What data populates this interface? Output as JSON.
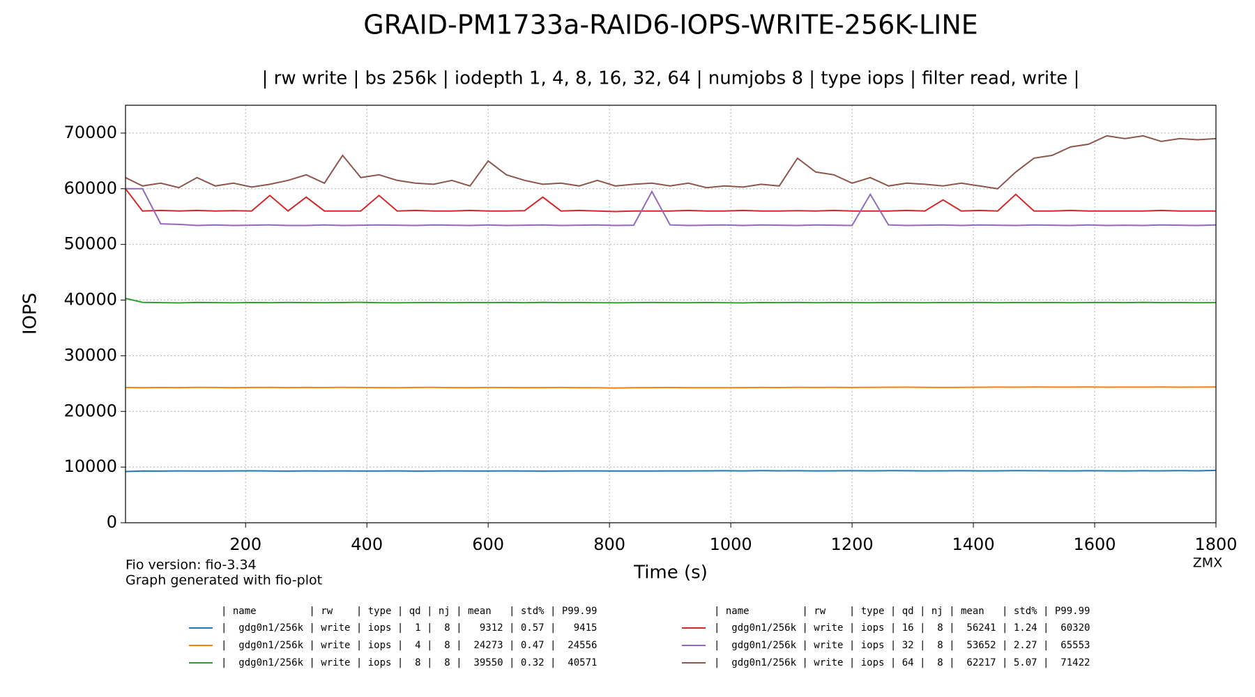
{
  "chart_data": {
    "type": "line",
    "title": "GRAID-PM1733a-RAID6-IOPS-WRITE-256K-LINE",
    "subtitle": "| rw write | bs 256k | iodepth 1, 4, 8, 16, 32, 64 | numjobs 8 | type iops | filter read, write |",
    "x_label": "Time (s)",
    "y_label": "IOPS",
    "footer_lines": [
      "Fio version: fio-3.34",
      "Graph generated with fio-plot"
    ],
    "footer_right": "ZMX",
    "legend_header": "| name         | rw    | type | qd | nj | mean   | std% | P99.99",
    "grid": true,
    "xlim": [
      2,
      1800
    ],
    "xticks": [
      200,
      400,
      600,
      800,
      1000,
      1200,
      1400,
      1600,
      1800
    ],
    "ylim": [
      0,
      75000
    ],
    "yticks": [
      0,
      10000,
      20000,
      30000,
      40000,
      50000,
      60000,
      70000
    ],
    "x": [
      2,
      30,
      60,
      90,
      120,
      150,
      180,
      210,
      240,
      270,
      300,
      330,
      360,
      390,
      420,
      450,
      480,
      510,
      540,
      570,
      600,
      630,
      660,
      690,
      720,
      750,
      780,
      810,
      840,
      870,
      900,
      930,
      960,
      990,
      1020,
      1050,
      1080,
      1110,
      1140,
      1170,
      1200,
      1230,
      1260,
      1290,
      1320,
      1350,
      1380,
      1410,
      1440,
      1470,
      1500,
      1530,
      1560,
      1590,
      1620,
      1650,
      1680,
      1710,
      1740,
      1770,
      1800
    ],
    "series": [
      {
        "name": "|  gdg0n1/256k | write | iops |  1 |  8 |   9312 | 0.57 |   9415",
        "color": "#1f77b4",
        "values": [
          9200,
          9300,
          9280,
          9320,
          9300,
          9290,
          9310,
          9330,
          9300,
          9280,
          9310,
          9300,
          9320,
          9290,
          9300,
          9310,
          9280,
          9300,
          9320,
          9300,
          9290,
          9310,
          9300,
          9280,
          9300,
          9320,
          9310,
          9300,
          9290,
          9300,
          9310,
          9320,
          9330,
          9340,
          9320,
          9350,
          9330,
          9340,
          9320,
          9330,
          9340,
          9330,
          9350,
          9340,
          9320,
          9330,
          9340,
          9320,
          9330,
          9350,
          9340,
          9330,
          9320,
          9340,
          9330,
          9320,
          9340,
          9330,
          9350,
          9330,
          9400
        ]
      },
      {
        "name": "|  gdg0n1/256k | write | iops |  4 |  8 |  24273 | 0.47 |  24556",
        "color": "#ff7f0e",
        "values": [
          24300,
          24250,
          24300,
          24280,
          24320,
          24300,
          24260,
          24300,
          24310,
          24280,
          24300,
          24290,
          24320,
          24300,
          24280,
          24260,
          24300,
          24310,
          24280,
          24250,
          24300,
          24290,
          24260,
          24280,
          24300,
          24270,
          24250,
          24200,
          24260,
          24280,
          24300,
          24250,
          24270,
          24260,
          24280,
          24300,
          24290,
          24310,
          24300,
          24330,
          24300,
          24320,
          24340,
          24350,
          24330,
          24300,
          24320,
          24340,
          24360,
          24350,
          24380,
          24370,
          24360,
          24380,
          24350,
          24370,
          24360,
          24380,
          24350,
          24370,
          24380
        ]
      },
      {
        "name": "|  gdg0n1/256k | write | iops |  8 |  8 |  39550 | 0.32 |  40571",
        "color": "#2ca02c",
        "values": [
          40300,
          39600,
          39550,
          39500,
          39580,
          39550,
          39520,
          39560,
          39540,
          39580,
          39550,
          39530,
          39560,
          39600,
          39540,
          39520,
          39550,
          39570,
          39540,
          39560,
          39550,
          39580,
          39530,
          39600,
          39550,
          39560,
          39540,
          39520,
          39550,
          39580,
          39550,
          39530,
          39560,
          39540,
          39500,
          39560,
          39550,
          39580,
          39540,
          39560,
          39550,
          39530,
          39570,
          39550,
          39540,
          39560,
          39550,
          39580,
          39540,
          39560,
          39550,
          39570,
          39540,
          39560,
          39580,
          39550,
          39600,
          39550,
          39560,
          39540,
          39550
        ]
      },
      {
        "name": "|  gdg0n1/256k | write | iops | 16 |  8 |  56241 | 1.24 |  60320",
        "color": "#d62728",
        "values": [
          60000,
          56000,
          56100,
          56000,
          56100,
          56000,
          56050,
          56000,
          58800,
          56000,
          58500,
          56000,
          56000,
          56000,
          58800,
          56000,
          56100,
          56000,
          56000,
          56100,
          56000,
          56000,
          56050,
          58500,
          56000,
          56100,
          56000,
          55900,
          56000,
          56000,
          56000,
          56100,
          56000,
          56000,
          56100,
          56000,
          56000,
          56050,
          56000,
          56100,
          56000,
          56000,
          56000,
          56100,
          56000,
          58000,
          56000,
          56100,
          56000,
          59000,
          56000,
          56000,
          56100,
          56000,
          56000,
          56000,
          56000,
          56100,
          56000,
          56000,
          56000
        ]
      },
      {
        "name": "|  gdg0n1/256k | write | iops | 32 |  8 |  53652 | 2.27 |  65553",
        "color": "#9467bd",
        "values": [
          60000,
          60000,
          53700,
          53600,
          53400,
          53500,
          53400,
          53450,
          53500,
          53400,
          53400,
          53500,
          53400,
          53450,
          53500,
          53450,
          53400,
          53500,
          53450,
          53400,
          53500,
          53400,
          53450,
          53500,
          53400,
          53450,
          53500,
          53400,
          53450,
          59500,
          53500,
          53400,
          53450,
          53500,
          53400,
          53500,
          53450,
          53400,
          53500,
          53450,
          53400,
          59000,
          53500,
          53400,
          53450,
          53500,
          53400,
          53500,
          53450,
          53400,
          53500,
          53450,
          53400,
          53500,
          53400,
          53450,
          53400,
          53500,
          53450,
          53400,
          53500
        ]
      },
      {
        "name": "|  gdg0n1/256k | write | iops | 64 |  8 |  62217 | 5.07 |  71422",
        "color": "#8c564b",
        "values": [
          62000,
          60500,
          61000,
          60200,
          62000,
          60500,
          61000,
          60300,
          60800,
          61500,
          62500,
          61000,
          66000,
          62000,
          62500,
          61500,
          61000,
          60800,
          61500,
          60500,
          65000,
          62500,
          61500,
          60800,
          61000,
          60500,
          61500,
          60500,
          60800,
          61000,
          60500,
          61000,
          60200,
          60500,
          60300,
          60800,
          60500,
          65500,
          63000,
          62500,
          61000,
          62000,
          60500,
          61000,
          60800,
          60500,
          61000,
          60500,
          60000,
          63000,
          65500,
          66000,
          67500,
          68000,
          69500,
          69000,
          69500,
          68500,
          69000,
          68800,
          69000
        ]
      }
    ]
  }
}
